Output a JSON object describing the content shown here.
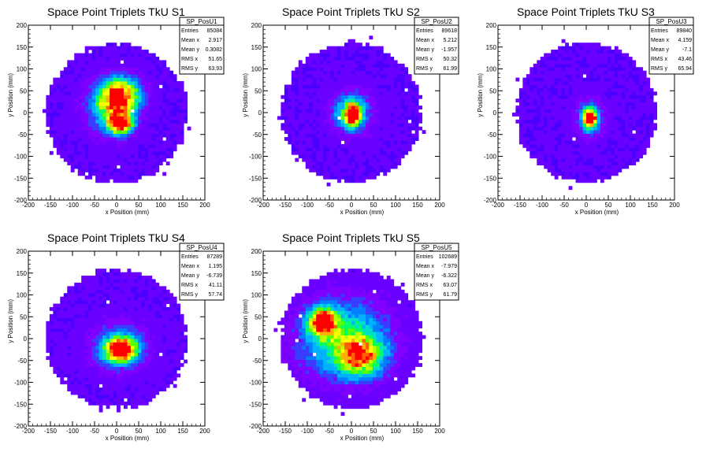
{
  "chart_data": [
    {
      "type": "heatmap",
      "title": "Space Point Triplets TkU S1",
      "xlabel": "x Position (mm)",
      "ylabel": "y Position (mm)",
      "xlim": [
        -200,
        200
      ],
      "ylim": [
        -200,
        200
      ],
      "xticks": [
        "-200",
        "-150",
        "-100",
        "-50",
        "0",
        "50",
        "100",
        "150",
        "200"
      ],
      "yticks": [
        "-200",
        "-150",
        "-100",
        "-50",
        "0",
        "50",
        "100",
        "150",
        "200"
      ],
      "stats": {
        "name": "SP_PosU1",
        "rows": [
          [
            "Entries",
            "85084"
          ],
          [
            "Mean x",
            "2.917"
          ],
          [
            "Mean y",
            "0.3082"
          ],
          [
            "RMS x",
            "51.65"
          ],
          [
            "RMS y",
            "63.93"
          ]
        ]
      },
      "footprint_radius_mm": 160,
      "hotspots": [
        {
          "x": 10,
          "y": -25,
          "sx": 18,
          "sy": 15,
          "amp": 1.0
        },
        {
          "x": 10,
          "y": 40,
          "sx": 30,
          "sy": 28,
          "amp": 0.8
        },
        {
          "x": -15,
          "y": 10,
          "sx": 35,
          "sy": 40,
          "amp": 0.5
        }
      ]
    },
    {
      "type": "heatmap",
      "title": "Space Point Triplets TkU S2",
      "xlabel": "x Position (mm)",
      "ylabel": "y Position (mm)",
      "xlim": [
        -200,
        200
      ],
      "ylim": [
        -200,
        200
      ],
      "xticks": [
        "-200",
        "-150",
        "-100",
        "-50",
        "0",
        "50",
        "100",
        "150",
        "200"
      ],
      "yticks": [
        "-200",
        "-150",
        "-100",
        "-50",
        "0",
        "50",
        "100",
        "150",
        "200"
      ],
      "stats": {
        "name": "SP_PosU2",
        "rows": [
          [
            "Entries",
            "89618"
          ],
          [
            "Mean x",
            "5.212"
          ],
          [
            "Mean y",
            "-1.957"
          ],
          [
            "RMS x",
            "50.32"
          ],
          [
            "RMS y",
            "61.99"
          ]
        ]
      },
      "footprint_radius_mm": 160,
      "hotspots": [
        {
          "x": 2,
          "y": -5,
          "sx": 10,
          "sy": 16,
          "amp": 1.0
        },
        {
          "x": 0,
          "y": 0,
          "sx": 28,
          "sy": 30,
          "amp": 0.55
        }
      ]
    },
    {
      "type": "heatmap",
      "title": "Space Point Triplets TkU S3",
      "xlabel": "x Position (mm)",
      "ylabel": "y Position (mm)",
      "xlim": [
        -200,
        200
      ],
      "ylim": [
        -200,
        200
      ],
      "xticks": [
        "-200",
        "-150",
        "-100",
        "-50",
        "0",
        "50",
        "100",
        "150",
        "200"
      ],
      "yticks": [
        "-200",
        "-150",
        "-100",
        "-50",
        "0",
        "50",
        "100",
        "150",
        "200"
      ],
      "stats": {
        "name": "SP_PosU3",
        "rows": [
          [
            "Entries",
            "89840"
          ],
          [
            "Mean x",
            "4.159"
          ],
          [
            "Mean y",
            "-7.1"
          ],
          [
            "RMS x",
            "43.46"
          ],
          [
            "RMS y",
            "65.94"
          ]
        ]
      },
      "footprint_radius_mm": 160,
      "hotspots": [
        {
          "x": 8,
          "y": -12,
          "sx": 10,
          "sy": 14,
          "amp": 1.0
        },
        {
          "x": 8,
          "y": -12,
          "sx": 20,
          "sy": 28,
          "amp": 0.4
        }
      ]
    },
    {
      "type": "heatmap",
      "title": "Space Point Triplets TkU S4",
      "xlabel": "x Position (mm)",
      "ylabel": "y Position (mm)",
      "xlim": [
        -200,
        200
      ],
      "ylim": [
        -200,
        200
      ],
      "xticks": [
        "-200",
        "-150",
        "-100",
        "-50",
        "0",
        "50",
        "100",
        "150",
        "200"
      ],
      "yticks": [
        "-200",
        "-150",
        "-100",
        "-50",
        "0",
        "50",
        "100",
        "150",
        "200"
      ],
      "stats": {
        "name": "SP_PosU4",
        "rows": [
          [
            "Entries",
            "87289"
          ],
          [
            "Mean x",
            "1.195"
          ],
          [
            "Mean y",
            "-6.739"
          ],
          [
            "RMS x",
            "41.11"
          ],
          [
            "RMS y",
            "57.74"
          ]
        ]
      },
      "footprint_radius_mm": 160,
      "hotspots": [
        {
          "x": 10,
          "y": -25,
          "sx": 22,
          "sy": 16,
          "amp": 1.0
        },
        {
          "x": 5,
          "y": -20,
          "sx": 40,
          "sy": 35,
          "amp": 0.45
        }
      ]
    },
    {
      "type": "heatmap",
      "title": "Space Point Triplets TkU S5",
      "xlabel": "x Position (mm)",
      "ylabel": "y Position (mm)",
      "xlim": [
        -200,
        200
      ],
      "ylim": [
        -200,
        200
      ],
      "xticks": [
        "-200",
        "-150",
        "-100",
        "-50",
        "0",
        "50",
        "100",
        "150",
        "200"
      ],
      "yticks": [
        "-200",
        "-150",
        "-100",
        "-50",
        "0",
        "50",
        "100",
        "150",
        "200"
      ],
      "stats": {
        "name": "SP_PosU5",
        "rows": [
          [
            "Entries",
            "102689"
          ],
          [
            "Mean x",
            "-7.979"
          ],
          [
            "Mean y",
            "-6.322"
          ],
          [
            "RMS x",
            "63.07"
          ],
          [
            "RMS y",
            "61.79"
          ]
        ]
      },
      "footprint_radius_mm": 160,
      "hotspots": [
        {
          "x": -65,
          "y": 40,
          "sx": 20,
          "sy": 20,
          "amp": 1.0
        },
        {
          "x": 20,
          "y": -40,
          "sx": 35,
          "sy": 30,
          "amp": 0.7
        },
        {
          "x": -20,
          "y": 0,
          "sx": 70,
          "sy": 60,
          "amp": 0.5
        }
      ]
    }
  ],
  "palette": [
    "#ffffff",
    "#4b00ff",
    "#6a00ff",
    "#7f00ff",
    "#3a3cff",
    "#0080ff",
    "#00b3ff",
    "#00e0c8",
    "#00ff66",
    "#5aff00",
    "#b4ff00",
    "#ffff00",
    "#ffb000",
    "#ff6000",
    "#ff0000"
  ]
}
